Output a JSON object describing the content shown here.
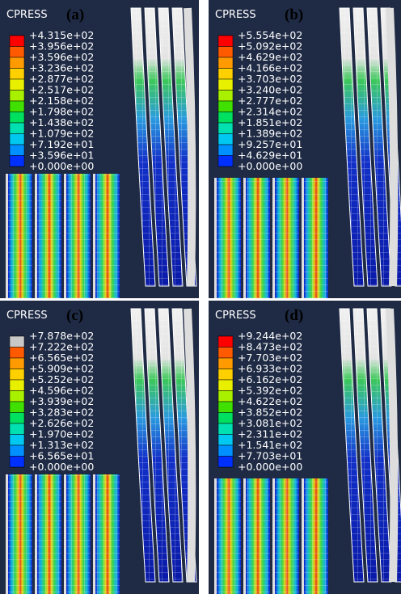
{
  "panels": [
    {
      "label": "(a)",
      "legend_title": "CPRESS",
      "levels": [
        "+4.315e+02",
        "+3.956e+02",
        "+3.596e+02",
        "+3.236e+02",
        "+2.877e+02",
        "+2.517e+02",
        "+2.158e+02",
        "+1.798e+02",
        "+1.438e+02",
        "+1.079e+02",
        "+7.192e+01",
        "+3.596e+01",
        "+0.000e+00"
      ]
    },
    {
      "label": "(b)",
      "legend_title": "CPRESS",
      "levels": [
        "+5.554e+02",
        "+5.092e+02",
        "+4.629e+02",
        "+4.166e+02",
        "+3.703e+02",
        "+3.240e+02",
        "+2.777e+02",
        "+2.314e+02",
        "+1.851e+02",
        "+1.389e+02",
        "+9.257e+01",
        "+4.629e+01",
        "+0.000e+00"
      ]
    },
    {
      "label": "(c)",
      "legend_title": "CPRESS",
      "levels": [
        "+7.878e+02",
        "+7.222e+02",
        "+6.565e+02",
        "+5.909e+02",
        "+5.252e+02",
        "+4.596e+02",
        "+3.939e+02",
        "+3.283e+02",
        "+2.626e+02",
        "+1.970e+02",
        "+1.313e+02",
        "+6.565e+01",
        "+0.000e+00"
      ]
    },
    {
      "label": "(d)",
      "legend_title": "CPRESS",
      "levels": [
        "+9.244e+02",
        "+8.473e+02",
        "+7.703e+02",
        "+6.933e+02",
        "+6.162e+02",
        "+5.392e+02",
        "+4.622e+02",
        "+3.852e+02",
        "+3.081e+02",
        "+2.311e+02",
        "+1.541e+02",
        "+7.703e+01",
        "+0.000e+00"
      ]
    }
  ]
}
